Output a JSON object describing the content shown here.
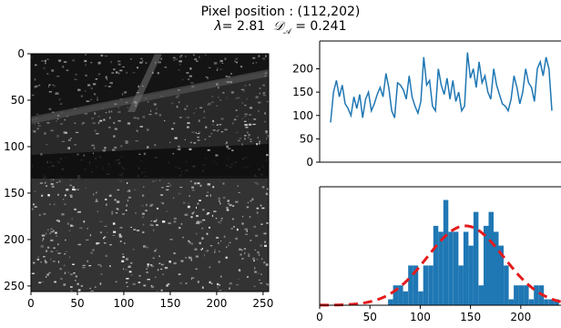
{
  "figure": {
    "title_line1": "Pixel position : (112,202)",
    "lambda_symbol": "λ",
    "lambda_eq": "= 2.81",
    "da_symbol": "𝒟",
    "da_sub": "𝒜",
    "da_eq": " = 0.241"
  },
  "chart_data": [
    {
      "type": "heatmap",
      "title": "",
      "xlim": [
        0,
        256
      ],
      "ylim": [
        256,
        0
      ],
      "xticks": [
        0,
        50,
        100,
        150,
        200,
        250
      ],
      "yticks": [
        0,
        50,
        100,
        150,
        200,
        250
      ],
      "colormap": "gray",
      "content": "SAR amplitude image"
    },
    {
      "type": "line",
      "ylim": [
        0,
        240
      ],
      "yticks": [
        0,
        50,
        100,
        150,
        200
      ],
      "color": "#1f77b4",
      "values": [
        85,
        150,
        175,
        140,
        165,
        125,
        115,
        100,
        140,
        115,
        145,
        95,
        135,
        150,
        110,
        125,
        145,
        160,
        140,
        190,
        160,
        110,
        95,
        170,
        165,
        155,
        135,
        185,
        140,
        120,
        105,
        130,
        225,
        165,
        175,
        120,
        110,
        200,
        165,
        145,
        180,
        135,
        175,
        130,
        150,
        110,
        120,
        235,
        180,
        200,
        160,
        215,
        170,
        185,
        150,
        135,
        200,
        165,
        145,
        125,
        120,
        110,
        135,
        185,
        160,
        125,
        150,
        200,
        170,
        160,
        130,
        200,
        215,
        185,
        225,
        200,
        110
      ]
    },
    {
      "type": "bar",
      "xlim": [
        0,
        240
      ],
      "xticks": [
        0,
        50,
        100,
        150,
        200
      ],
      "bar_color": "#1f77b4",
      "bins": [
        {
          "x0": 68,
          "x1": 73,
          "count": 0.15
        },
        {
          "x0": 73,
          "x1": 78,
          "count": 0.5
        },
        {
          "x0": 78,
          "x1": 83,
          "count": 0.5
        },
        {
          "x0": 83,
          "x1": 88,
          "count": 0.35
        },
        {
          "x0": 88,
          "x1": 93,
          "count": 1.0
        },
        {
          "x0": 93,
          "x1": 98,
          "count": 1.0
        },
        {
          "x0": 98,
          "x1": 103,
          "count": 0.35
        },
        {
          "x0": 103,
          "x1": 108,
          "count": 1.0
        },
        {
          "x0": 108,
          "x1": 113,
          "count": 1.0
        },
        {
          "x0": 113,
          "x1": 118,
          "count": 2.0
        },
        {
          "x0": 118,
          "x1": 123,
          "count": 1.85
        },
        {
          "x0": 123,
          "x1": 128,
          "count": 2.65
        },
        {
          "x0": 128,
          "x1": 133,
          "count": 1.85
        },
        {
          "x0": 133,
          "x1": 138,
          "count": 1.85
        },
        {
          "x0": 138,
          "x1": 143,
          "count": 1.0
        },
        {
          "x0": 143,
          "x1": 148,
          "count": 1.85
        },
        {
          "x0": 148,
          "x1": 153,
          "count": 1.5
        },
        {
          "x0": 153,
          "x1": 158,
          "count": 2.35
        },
        {
          "x0": 158,
          "x1": 163,
          "count": 0.5
        },
        {
          "x0": 163,
          "x1": 168,
          "count": 2.0
        },
        {
          "x0": 168,
          "x1": 173,
          "count": 2.35
        },
        {
          "x0": 173,
          "x1": 178,
          "count": 1.85
        },
        {
          "x0": 178,
          "x1": 183,
          "count": 1.5
        },
        {
          "x0": 183,
          "x1": 188,
          "count": 1.0
        },
        {
          "x0": 188,
          "x1": 193,
          "count": 0.15
        },
        {
          "x0": 193,
          "x1": 198,
          "count": 0.5
        },
        {
          "x0": 198,
          "x1": 203,
          "count": 0.5
        },
        {
          "x0": 203,
          "x1": 208,
          "count": 0.5
        },
        {
          "x0": 208,
          "x1": 213,
          "count": 0.15
        },
        {
          "x0": 213,
          "x1": 218,
          "count": 0.5
        },
        {
          "x0": 218,
          "x1": 223,
          "count": 0.5
        },
        {
          "x0": 223,
          "x1": 228,
          "count": 0.15
        },
        {
          "x0": 228,
          "x1": 233,
          "count": 0.15
        },
        {
          "x0": 233,
          "x1": 238,
          "count": 0.15
        }
      ],
      "fit": {
        "type": "gaussian",
        "color": "#e41a1c",
        "style": "dashed",
        "mean": 145,
        "std": 38,
        "peak": 2.0
      },
      "count_max": 2.8
    }
  ]
}
